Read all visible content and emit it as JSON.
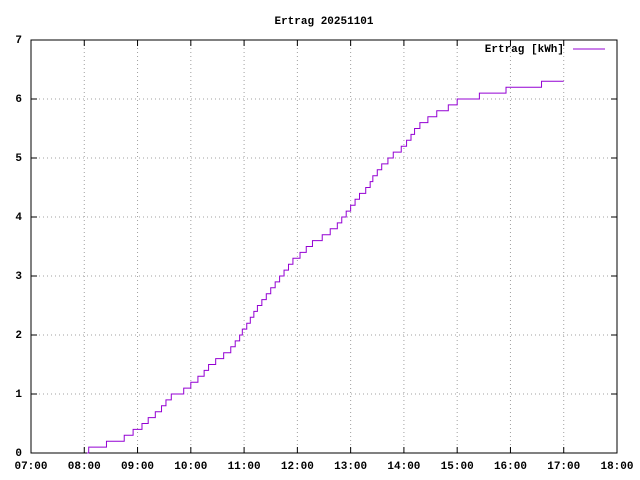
{
  "chart_data": {
    "type": "step",
    "title": "Ertrag 20251101",
    "series": [
      {
        "name": "Ertrag [kWh]",
        "color": "#9400d3",
        "x": [
          "08:03",
          "08:05",
          "08:25",
          "08:45",
          "08:55",
          "09:05",
          "09:12",
          "09:20",
          "09:27",
          "09:32",
          "09:38",
          "09:52",
          "10:00",
          "10:08",
          "10:15",
          "10:20",
          "10:28",
          "10:37",
          "10:45",
          "10:50",
          "10:55",
          "10:58",
          "11:03",
          "11:07",
          "11:11",
          "11:15",
          "11:20",
          "11:25",
          "11:30",
          "11:35",
          "11:40",
          "11:45",
          "11:50",
          "11:55",
          "12:03",
          "12:10",
          "12:17",
          "12:28",
          "12:37",
          "12:45",
          "12:50",
          "12:55",
          "13:00",
          "13:05",
          "13:10",
          "13:17",
          "13:22",
          "13:25",
          "13:30",
          "13:35",
          "13:42",
          "13:48",
          "13:57",
          "14:03",
          "14:08",
          "14:12",
          "14:18",
          "14:27",
          "14:37",
          "14:50",
          "15:00",
          "15:25",
          "15:55",
          "16:35",
          "17:00"
        ],
        "values": [
          0,
          0.1,
          0.2,
          0.3,
          0.4,
          0.5,
          0.6,
          0.7,
          0.8,
          0.9,
          1.0,
          1.1,
          1.2,
          1.3,
          1.4,
          1.5,
          1.6,
          1.7,
          1.8,
          1.9,
          2.0,
          2.1,
          2.2,
          2.3,
          2.4,
          2.5,
          2.6,
          2.7,
          2.8,
          2.9,
          3.0,
          3.1,
          3.2,
          3.3,
          3.4,
          3.5,
          3.6,
          3.7,
          3.8,
          3.9,
          4.0,
          4.1,
          4.2,
          4.3,
          4.4,
          4.5,
          4.6,
          4.7,
          4.8,
          4.9,
          5.0,
          5.1,
          5.2,
          5.3,
          5.4,
          5.5,
          5.6,
          5.7,
          5.8,
          5.9,
          6.0,
          6.1,
          6.2,
          6.3,
          6.3
        ]
      }
    ],
    "xlim": [
      "07:00",
      "18:00"
    ],
    "xticks": [
      "07:00",
      "08:00",
      "09:00",
      "10:00",
      "11:00",
      "12:00",
      "13:00",
      "14:00",
      "15:00",
      "16:00",
      "17:00",
      "18:00"
    ],
    "ylim": [
      0,
      7
    ],
    "yticks": [
      0,
      1,
      2,
      3,
      4,
      5,
      6,
      7
    ],
    "grid": true,
    "legend": "top-right"
  }
}
